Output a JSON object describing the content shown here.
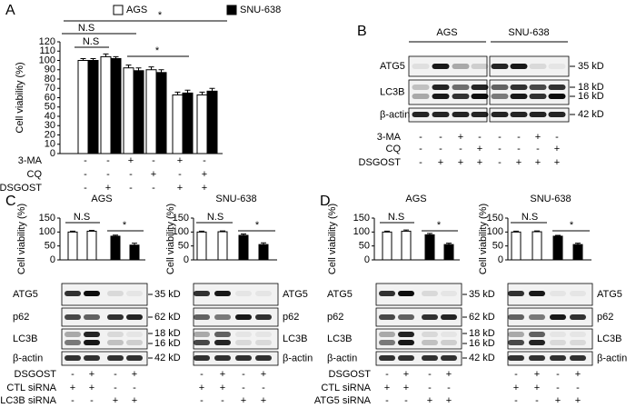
{
  "panel_labels": [
    "A",
    "B",
    "C",
    "D"
  ],
  "chart_data": [
    {
      "type": "bar",
      "y_label": "Cell viability (%)",
      "categories": [
        null,
        null,
        null,
        null,
        null,
        null
      ],
      "series": [
        {
          "name": "AGS",
          "color": "#ffffff",
          "values": [
            100,
            104,
            92,
            90,
            63,
            63
          ],
          "errors": [
            2,
            3,
            3,
            3,
            3,
            3
          ]
        },
        {
          "name": "SNU-638",
          "color": "#000000",
          "values": [
            100,
            102,
            89,
            87,
            65,
            67
          ],
          "errors": [
            2,
            2,
            3,
            3,
            3,
            3
          ]
        }
      ],
      "ylim": [
        0,
        120
      ],
      "yticks": [
        0,
        10,
        20,
        30,
        40,
        50,
        60,
        70,
        80,
        90,
        100,
        110,
        120
      ],
      "annotations": [
        "*",
        "N.S",
        "N.S",
        "*"
      ]
    },
    {
      "type": "bar",
      "title": "AGS",
      "y_label": "Cell viability (%)",
      "categories": [
        null,
        null,
        null,
        null
      ],
      "values": [
        100,
        103,
        85,
        53
      ],
      "errors": [
        3,
        3,
        4,
        7
      ],
      "colors": [
        "#ffffff",
        "#ffffff",
        "#000000",
        "#000000"
      ],
      "ylim": [
        0,
        150
      ],
      "yticks": [
        0,
        50,
        100,
        150
      ],
      "annotations": [
        "N.S",
        "*"
      ]
    },
    {
      "type": "bar",
      "title": "SNU-638",
      "y_label": "Cell viability (%)",
      "categories": [
        null,
        null,
        null,
        null
      ],
      "values": [
        100,
        101,
        88,
        55
      ],
      "errors": [
        3,
        3,
        5,
        6
      ],
      "colors": [
        "#ffffff",
        "#ffffff",
        "#000000",
        "#000000"
      ],
      "ylim": [
        0,
        150
      ],
      "yticks": [
        0,
        50,
        100,
        150
      ],
      "annotations": [
        "N.S",
        "*"
      ]
    },
    {
      "type": "bar",
      "title": "AGS",
      "y_label": "Cell viability (%)",
      "categories": [
        null,
        null,
        null,
        null
      ],
      "values": [
        100,
        103,
        90,
        55
      ],
      "errors": [
        3,
        4,
        5,
        5
      ],
      "colors": [
        "#ffffff",
        "#ffffff",
        "#000000",
        "#000000"
      ],
      "ylim": [
        0,
        150
      ],
      "yticks": [
        0,
        50,
        100,
        150
      ],
      "annotations": [
        "N.S",
        "*"
      ]
    },
    {
      "type": "bar",
      "title": "SNU-638",
      "y_label": "Cell viability (%)",
      "categories": [
        null,
        null,
        null,
        null
      ],
      "values": [
        100,
        101,
        85,
        55
      ],
      "errors": [
        3,
        3,
        3,
        5
      ],
      "colors": [
        "#ffffff",
        "#ffffff",
        "#000000",
        "#000000"
      ],
      "ylim": [
        0,
        150
      ],
      "yticks": [
        0,
        50,
        100,
        150
      ],
      "annotations": [
        "N.S",
        "*"
      ]
    }
  ],
  "treatments_a": {
    "rows": [
      {
        "label": "3-MA",
        "signs": [
          "-",
          "-",
          "+",
          "-",
          "+",
          "-"
        ]
      },
      {
        "label": "CQ",
        "signs": [
          "-",
          "-",
          "-",
          "+",
          "-",
          "+"
        ]
      },
      {
        "label": "DSGOST",
        "signs": [
          "-",
          "+",
          "-",
          "-",
          "+",
          "+"
        ]
      }
    ]
  },
  "blot_b": {
    "groups": [
      "AGS",
      "SNU-638"
    ],
    "rows": [
      "ATG5",
      "LC3B",
      "β-actin"
    ],
    "size_labels": [
      "35 kD",
      "18 kD",
      "16 kD",
      "42 kD"
    ],
    "treatments": {
      "rows": [
        {
          "label": "3-MA",
          "signs": [
            "-",
            "-",
            "+",
            "-",
            "-",
            "-",
            "+",
            "-"
          ]
        },
        {
          "label": "CQ",
          "signs": [
            "-",
            "-",
            "-",
            "+",
            "-",
            "-",
            "-",
            "+"
          ]
        },
        {
          "label": "DSGOST",
          "signs": [
            "-",
            "+",
            "+",
            "+",
            "-",
            "+",
            "+",
            "+"
          ]
        }
      ]
    }
  },
  "blot_c": {
    "rows": [
      "ATG5",
      "p62",
      "LC3B",
      "β-actin"
    ],
    "size_labels": [
      "35 kD",
      "62 kD",
      "18 kD",
      "16 kD",
      "42 kD"
    ],
    "treatments": {
      "rows": [
        {
          "label": "DSGOST",
          "signs": [
            "-",
            "+",
            "-",
            "+",
            "-",
            "+",
            "-",
            "+"
          ]
        },
        {
          "label": "CTL siRNA",
          "signs": [
            "+",
            "+",
            "-",
            "-",
            "+",
            "+",
            "-",
            "-"
          ]
        },
        {
          "label": "LC3B siRNA",
          "signs": [
            "-",
            "-",
            "+",
            "+",
            "-",
            "-",
            "+",
            "+"
          ]
        }
      ]
    }
  },
  "blot_d": {
    "rows": [
      "ATG5",
      "p62",
      "LC3B",
      "β-actin"
    ],
    "size_labels": [
      "35 kD",
      "62 kD",
      "18 kD",
      "16 kD",
      "42 kD"
    ],
    "treatments": {
      "rows": [
        {
          "label": "DSGOST",
          "signs": [
            "-",
            "+",
            "-",
            "+",
            "-",
            "+",
            "-",
            "+"
          ]
        },
        {
          "label": "CTL siRNA",
          "signs": [
            "+",
            "+",
            "-",
            "-",
            "+",
            "+",
            "-",
            "-"
          ]
        },
        {
          "label": "ATG5 siRNA",
          "signs": [
            "-",
            "-",
            "+",
            "+",
            "-",
            "-",
            "+",
            "+"
          ]
        }
      ]
    }
  }
}
